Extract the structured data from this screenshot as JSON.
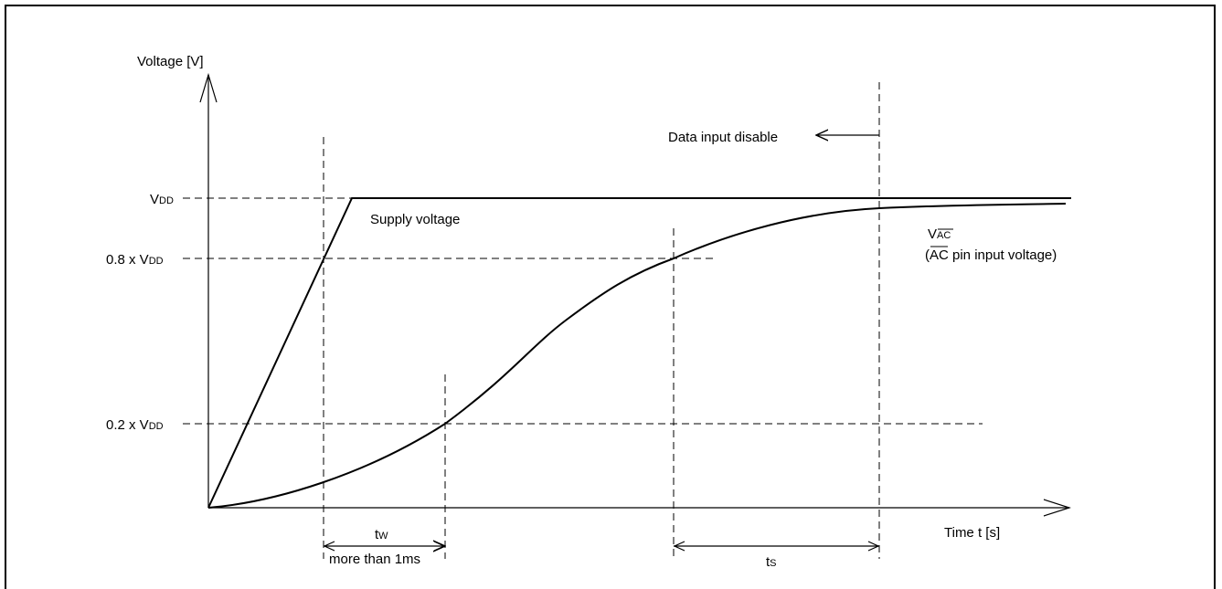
{
  "y_axis": {
    "label": "Voltage [V]"
  },
  "x_axis": {
    "label": "Time t [s]"
  },
  "levels": {
    "vdd": {
      "main": "V",
      "sub": "DD"
    },
    "vdd_80": {
      "prefix": "0.8 x V",
      "sub": "DD"
    },
    "vdd_20": {
      "prefix": "0.2 x V",
      "sub": "DD"
    }
  },
  "curves": {
    "supply": {
      "label": "Supply voltage"
    },
    "vac": {
      "main": "V",
      "sub": "AC",
      "desc_overline": "AC",
      "desc_rest": " pin input voltage)"
    }
  },
  "annotations": {
    "data_input_disable": "Data input disable",
    "tw": {
      "main": "t",
      "sub": "W"
    },
    "tw_note": "more than 1ms",
    "ts": {
      "main": "t",
      "sub": "S"
    }
  }
}
